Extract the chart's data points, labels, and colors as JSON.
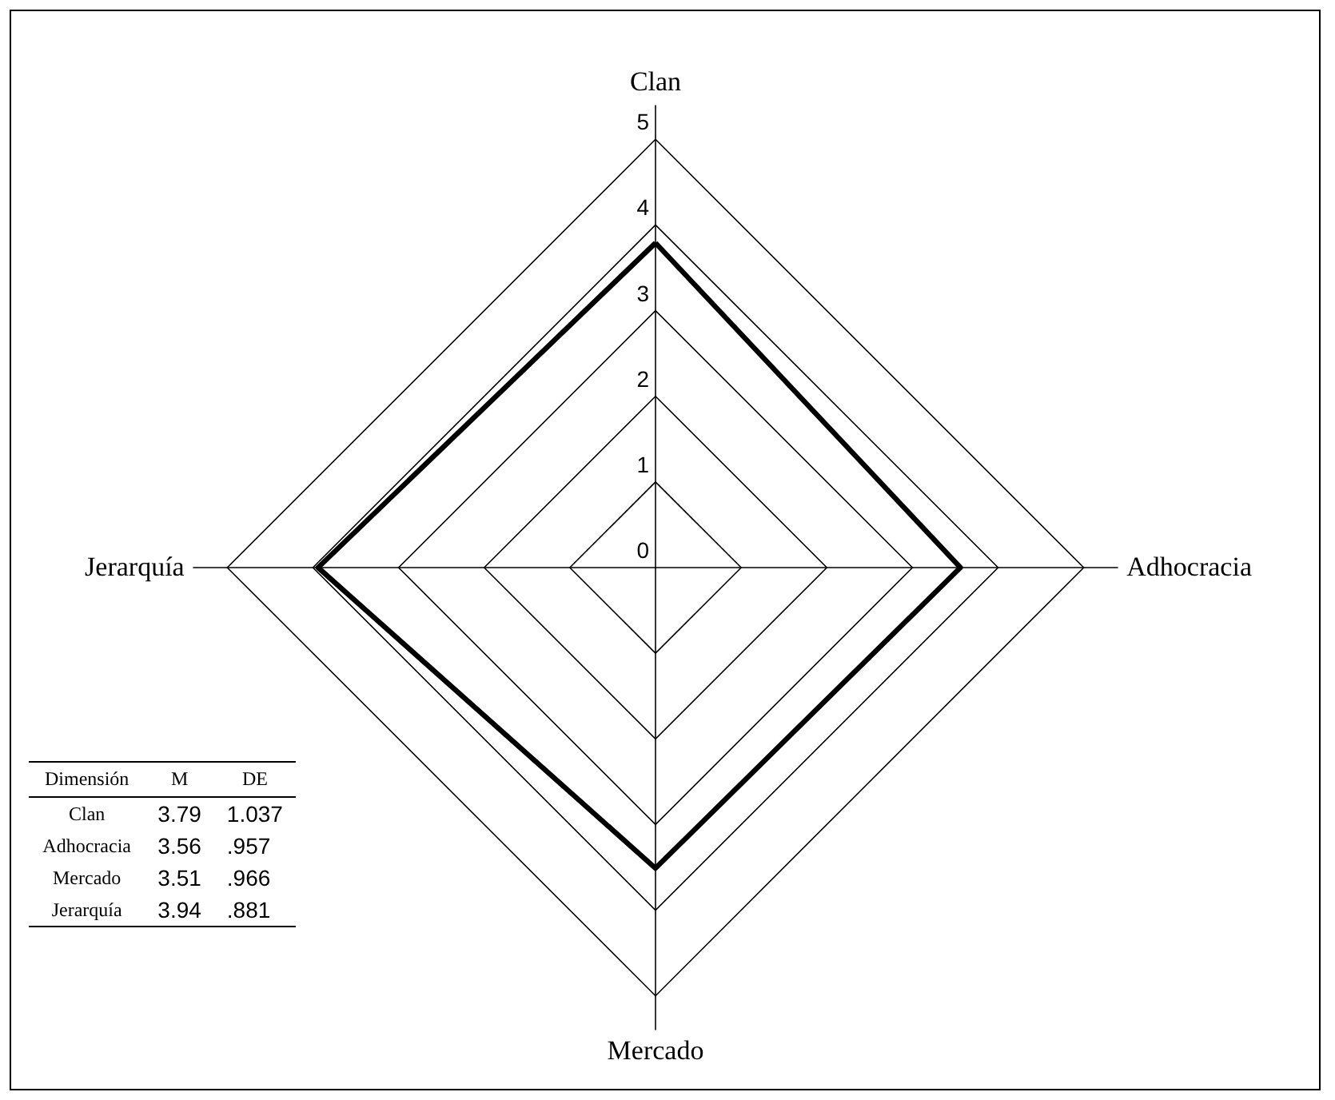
{
  "chart_data": {
    "type": "radar",
    "categories": [
      "Clan",
      "Adhocracia",
      "Mercado",
      "Jerarquía"
    ],
    "series": [
      {
        "color": "#000000",
        "values": [
          3.79,
          3.56,
          3.51,
          3.94
        ]
      }
    ],
    "ylim": [
      0,
      5
    ],
    "yticks": [
      0,
      1,
      2,
      3,
      4,
      5
    ],
    "grid": true,
    "annotations": [
      "Dimensión",
      "M",
      "DE",
      "3.79",
      "1.037",
      "3.56",
      ".957",
      "3.51",
      ".966",
      "3.94",
      ".881"
    ]
  }
}
